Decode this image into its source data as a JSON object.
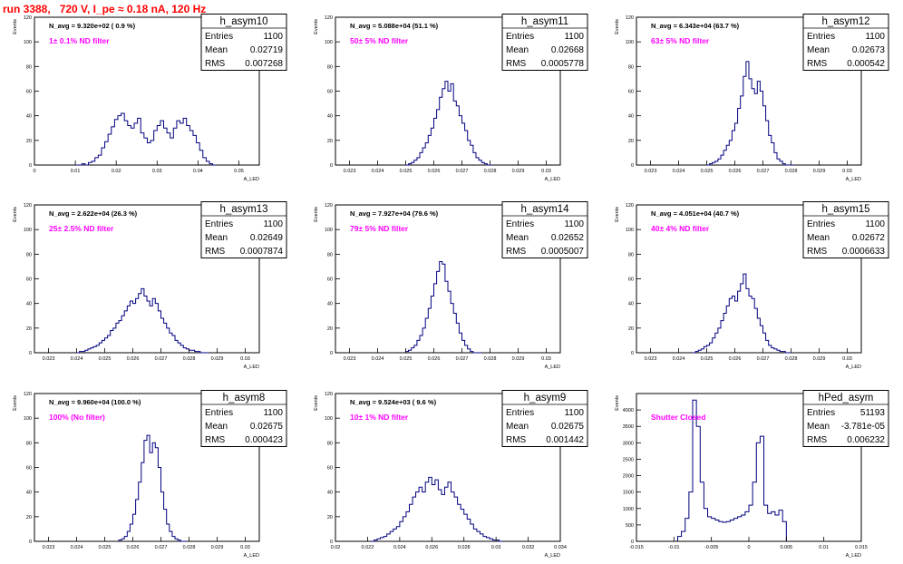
{
  "page": {
    "title": "run 3388,   720 V, I_pe ≈ 0.18 nA, 120 Hz"
  },
  "stats_labels": {
    "entries": "Entries",
    "mean": "Mean",
    "rms": "RMS"
  },
  "chart_data": [
    {
      "type": "histogram",
      "name": "h_asym10",
      "n_avg": "N_avg = 9.320e+02 ( 0.9 %)",
      "filter": "1± 0.1% ND filter",
      "stats": {
        "entries": "1100",
        "mean": "0.02719",
        "rms": "0.007268"
      },
      "ylabel": "Events",
      "xlabel": "A_LED",
      "xlim": [
        0,
        0.055
      ],
      "ylim": [
        0,
        120
      ],
      "xticks": [
        0,
        0.01,
        0.02,
        0.03,
        0.04,
        0.05
      ],
      "xtick_labels": [
        "0",
        "0.01",
        "0.02",
        "0.03",
        "0.04",
        "0.05"
      ],
      "yticks": [
        0,
        20,
        40,
        60,
        80,
        100,
        120
      ],
      "bin_start": 0.01,
      "bin_width": 0.0008,
      "counts": [
        0,
        0,
        1,
        0,
        2,
        3,
        6,
        8,
        14,
        19,
        25,
        31,
        37,
        40,
        42,
        36,
        32,
        30,
        34,
        38,
        26,
        22,
        18,
        20,
        28,
        32,
        36,
        30,
        26,
        22,
        30,
        36,
        34,
        38,
        32,
        28,
        24,
        18,
        12,
        6,
        3,
        1,
        0
      ]
    },
    {
      "type": "histogram",
      "name": "h_asym11",
      "n_avg": "N_avg = 5.088e+04 (51.1 %)",
      "filter": "50± 5% ND filter",
      "stats": {
        "entries": "1100",
        "mean": "0.02668",
        "rms": "0.0005778"
      },
      "ylabel": "Events",
      "xlabel": "A_LED",
      "xlim": [
        0.0225,
        0.0305
      ],
      "ylim": [
        0,
        120
      ],
      "xticks": [
        0.023,
        0.024,
        0.025,
        0.026,
        0.027,
        0.028,
        0.029,
        0.03
      ],
      "xtick_labels": [
        "0.023",
        "0.024",
        "0.025",
        "0.026",
        "0.027",
        "0.028",
        "0.029",
        "0.03"
      ],
      "yticks": [
        0,
        20,
        40,
        60,
        80,
        100,
        120
      ],
      "bin_start": 0.025,
      "bin_width": 0.0001,
      "counts": [
        0,
        1,
        2,
        4,
        6,
        10,
        14,
        18,
        24,
        30,
        38,
        45,
        55,
        62,
        68,
        60,
        66,
        52,
        48,
        40,
        34,
        28,
        20,
        16,
        10,
        6,
        4,
        2,
        1,
        0,
        0
      ]
    },
    {
      "type": "histogram",
      "name": "h_asym12",
      "n_avg": "N_avg = 6.343e+04 (63.7 %)",
      "filter": "63± 5% ND filter",
      "stats": {
        "entries": "1100",
        "mean": "0.02673",
        "rms": "0.000542"
      },
      "ylabel": "Events",
      "xlabel": "A_LED",
      "xlim": [
        0.0225,
        0.0305
      ],
      "ylim": [
        0,
        120
      ],
      "xticks": [
        0.023,
        0.024,
        0.025,
        0.026,
        0.027,
        0.028,
        0.029,
        0.03
      ],
      "xtick_labels": [
        "0.023",
        "0.024",
        "0.025",
        "0.026",
        "0.027",
        "0.028",
        "0.029",
        "0.03"
      ],
      "yticks": [
        0,
        20,
        40,
        60,
        80,
        100,
        120
      ],
      "bin_start": 0.025,
      "bin_width": 0.0001,
      "counts": [
        0,
        1,
        2,
        3,
        5,
        8,
        12,
        16,
        20,
        28,
        34,
        46,
        56,
        72,
        84,
        70,
        62,
        58,
        68,
        60,
        48,
        36,
        24,
        18,
        10,
        5,
        3,
        1,
        0,
        0,
        0
      ]
    },
    {
      "type": "histogram",
      "name": "h_asym13",
      "n_avg": "N_avg = 2.622e+04 (26.3 %)",
      "filter": "25± 2.5% ND filter",
      "stats": {
        "entries": "1100",
        "mean": "0.02649",
        "rms": "0.0007874"
      },
      "ylabel": "Events",
      "xlabel": "A_LED",
      "xlim": [
        0.0225,
        0.0305
      ],
      "ylim": [
        0,
        120
      ],
      "xticks": [
        0.023,
        0.024,
        0.025,
        0.026,
        0.027,
        0.028,
        0.029,
        0.03
      ],
      "xtick_labels": [
        "0.023",
        "0.024",
        "0.025",
        "0.026",
        "0.027",
        "0.028",
        "0.029",
        "0.03"
      ],
      "yticks": [
        0,
        20,
        40,
        60,
        80,
        100,
        120
      ],
      "bin_start": 0.024,
      "bin_width": 0.0001,
      "counts": [
        0,
        1,
        1,
        2,
        3,
        4,
        5,
        6,
        8,
        10,
        12,
        14,
        18,
        20,
        24,
        26,
        30,
        34,
        38,
        42,
        40,
        44,
        48,
        52,
        46,
        42,
        38,
        44,
        40,
        34,
        28,
        24,
        20,
        16,
        14,
        10,
        8,
        6,
        4,
        3,
        2,
        2,
        1,
        1,
        0,
        0,
        0
      ]
    },
    {
      "type": "histogram",
      "name": "h_asym14",
      "n_avg": "N_avg = 7.927e+04 (79.6 %)",
      "filter": "79± 5% ND filter",
      "stats": {
        "entries": "1100",
        "mean": "0.02652",
        "rms": "0.0005007"
      },
      "ylabel": "Events",
      "xlabel": "A_LED",
      "xlim": [
        0.0225,
        0.0305
      ],
      "ylim": [
        0,
        120
      ],
      "xticks": [
        0.023,
        0.024,
        0.025,
        0.026,
        0.027,
        0.028,
        0.029,
        0.03
      ],
      "xtick_labels": [
        "0.023",
        "0.024",
        "0.025",
        "0.026",
        "0.027",
        "0.028",
        "0.029",
        "0.03"
      ],
      "yticks": [
        0,
        20,
        40,
        60,
        80,
        100,
        120
      ],
      "bin_start": 0.025,
      "bin_width": 0.0001,
      "counts": [
        1,
        2,
        4,
        6,
        10,
        14,
        20,
        28,
        36,
        46,
        56,
        66,
        74,
        72,
        58,
        50,
        40,
        32,
        24,
        16,
        10,
        6,
        3,
        1,
        0,
        0,
        0
      ]
    },
    {
      "type": "histogram",
      "name": "h_asym15",
      "n_avg": "N_avg = 4.051e+04 (40.7 %)",
      "filter": "40± 4% ND filter",
      "stats": {
        "entries": "1100",
        "mean": "0.02672",
        "rms": "0.0006633"
      },
      "ylabel": "Events",
      "xlabel": "A_LED",
      "xlim": [
        0.0225,
        0.0305
      ],
      "ylim": [
        0,
        120
      ],
      "xticks": [
        0.023,
        0.024,
        0.025,
        0.026,
        0.027,
        0.028,
        0.029,
        0.03
      ],
      "xtick_labels": [
        "0.023",
        "0.024",
        "0.025",
        "0.026",
        "0.027",
        "0.028",
        "0.029",
        "0.03"
      ],
      "yticks": [
        0,
        20,
        40,
        60,
        80,
        100,
        120
      ],
      "bin_start": 0.0245,
      "bin_width": 0.0001,
      "counts": [
        0,
        1,
        2,
        3,
        5,
        6,
        8,
        12,
        16,
        20,
        26,
        32,
        38,
        44,
        46,
        42,
        50,
        56,
        64,
        52,
        46,
        44,
        36,
        28,
        22,
        16,
        10,
        6,
        4,
        3,
        2,
        1,
        1,
        0,
        0
      ]
    },
    {
      "type": "histogram",
      "name": "h_asym8",
      "n_avg": "N_avg = 9.960e+04 (100.0 %)",
      "filter": "100% (No filter)",
      "stats": {
        "entries": "1100",
        "mean": "0.02675",
        "rms": "0.000423"
      },
      "ylabel": "Events",
      "xlabel": "A_LED",
      "xlim": [
        0.0225,
        0.0305
      ],
      "ylim": [
        0,
        120
      ],
      "xticks": [
        0.023,
        0.024,
        0.025,
        0.026,
        0.027,
        0.028,
        0.029,
        0.03
      ],
      "xtick_labels": [
        "0.023",
        "0.024",
        "0.025",
        "0.026",
        "0.027",
        "0.028",
        "0.029",
        "0.03"
      ],
      "yticks": [
        0,
        20,
        40,
        60,
        80,
        100,
        120
      ],
      "bin_start": 0.0255,
      "bin_width": 0.0001,
      "counts": [
        1,
        2,
        4,
        8,
        14,
        22,
        34,
        48,
        64,
        82,
        86,
        72,
        80,
        76,
        60,
        40,
        26,
        14,
        8,
        4,
        2,
        1,
        0,
        0
      ]
    },
    {
      "type": "histogram",
      "name": "h_asym9",
      "n_avg": "N_avg = 9.524e+03 ( 9.6 %)",
      "filter": "10± 1% ND filter",
      "stats": {
        "entries": "1100",
        "mean": "0.02675",
        "rms": "0.001442"
      },
      "ylabel": "Events",
      "xlabel": "A_LED",
      "xlim": [
        0.02,
        0.034
      ],
      "ylim": [
        0,
        120
      ],
      "xticks": [
        0.02,
        0.022,
        0.024,
        0.026,
        0.028,
        0.03,
        0.032,
        0.034
      ],
      "xtick_labels": [
        "0.02",
        "0.022",
        "0.024",
        "0.026",
        "0.028",
        "0.03",
        "0.032",
        "0.034"
      ],
      "yticks": [
        0,
        20,
        40,
        60,
        80,
        100,
        120
      ],
      "bin_start": 0.0222,
      "bin_width": 0.0002,
      "counts": [
        0,
        1,
        2,
        3,
        4,
        6,
        8,
        10,
        12,
        16,
        20,
        24,
        30,
        36,
        40,
        44,
        40,
        48,
        52,
        46,
        50,
        42,
        38,
        44,
        48,
        40,
        36,
        30,
        26,
        22,
        18,
        14,
        10,
        8,
        6,
        4,
        3,
        2,
        1,
        1,
        0
      ]
    },
    {
      "type": "histogram",
      "name": "hPed_asym",
      "n_avg": "",
      "filter": "Shutter Closed",
      "stats": {
        "entries": "51193",
        "mean": "-3.781e-05",
        "rms": "0.006232"
      },
      "ylabel": "Events",
      "xlabel": "A_LED",
      "xlim": [
        -0.015,
        0.015
      ],
      "ylim": [
        0,
        4500
      ],
      "xticks": [
        -0.015,
        -0.01,
        -0.005,
        0,
        0.005,
        0.01,
        0.015
      ],
      "xtick_labels": [
        "-0.015",
        "-0.01",
        "-0.005",
        "0",
        "0.005",
        "0.01",
        "0.015"
      ],
      "yticks": [
        0,
        500,
        1000,
        1500,
        2000,
        2500,
        3000,
        3500,
        4000
      ],
      "bin_start": -0.0095,
      "bin_width": 0.0005,
      "counts": [
        150,
        300,
        700,
        1500,
        4300,
        3500,
        1800,
        1000,
        750,
        700,
        650,
        600,
        580,
        600,
        650,
        700,
        750,
        800,
        900,
        1100,
        1800,
        3000,
        3200,
        1100,
        850,
        900,
        800,
        950,
        600
      ]
    }
  ]
}
